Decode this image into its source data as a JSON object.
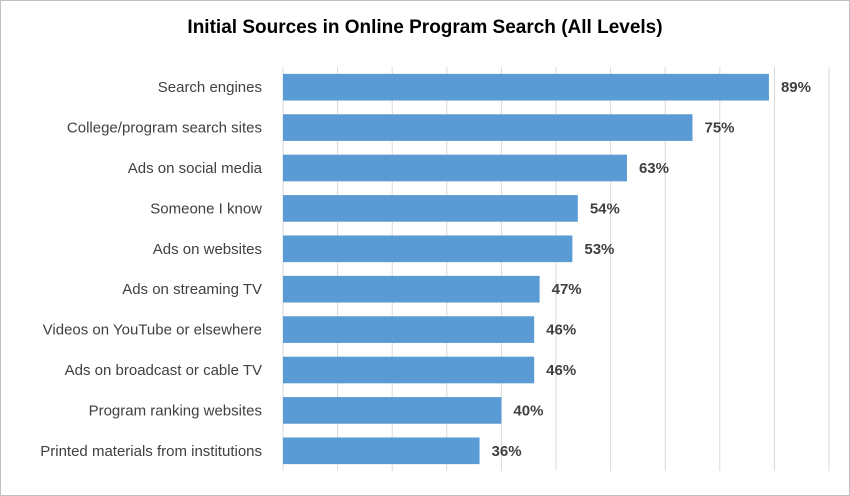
{
  "chart_data": {
    "type": "bar",
    "orientation": "horizontal",
    "title": "Initial Sources in Online Program Search (All Levels)",
    "categories": [
      "Search engines",
      "College/program search sites",
      "Ads on social media",
      "Someone I know",
      "Ads on websites",
      "Ads on streaming TV",
      "Videos on YouTube or elsewhere",
      "Ads on broadcast or cable TV",
      "Program ranking websites",
      "Printed materials from institutions"
    ],
    "values": [
      89,
      75,
      63,
      54,
      53,
      47,
      46,
      46,
      40,
      36
    ],
    "value_labels": [
      "89%",
      "75%",
      "63%",
      "54%",
      "53%",
      "47%",
      "46%",
      "46%",
      "40%",
      "36%"
    ],
    "xlim": [
      0,
      100
    ],
    "grid": true,
    "bar_color": "#5b9bd5"
  }
}
